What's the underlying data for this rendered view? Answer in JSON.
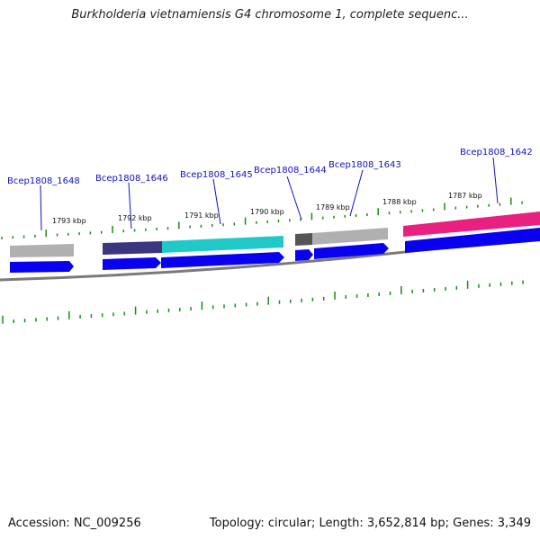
{
  "title": "Burkholderia vietnamiensis G4 chromosome 1, complete sequenc...",
  "footer": {
    "accession": "Accession: NC_009256",
    "summary": "Topology: circular; Length: 3,652,814 bp; Genes: 3,349"
  },
  "genes": [
    {
      "name": "Bcep1808_1648"
    },
    {
      "name": "Bcep1808_1646"
    },
    {
      "name": "Bcep1808_1645"
    },
    {
      "name": "Bcep1808_1644"
    },
    {
      "name": "Bcep1808_1643"
    },
    {
      "name": "Bcep1808_1642"
    }
  ],
  "kbp_labels": [
    "1793 kbp",
    "1792 kbp",
    "1791 kbp",
    "1790 kbp",
    "1789 kbp",
    "1788 kbp",
    "1787 kbp"
  ],
  "colors": {
    "label": "#1010c8",
    "cds": "#0a00f0",
    "gray_feature": "#b0b0b0",
    "navy_feature": "#3a3680",
    "cyan_feature": "#20c8c8",
    "dark_gray_feature": "#555555",
    "magenta_feature": "#e8207f",
    "tick": "#1a8a1a",
    "backbone": "#7a7a7a"
  }
}
